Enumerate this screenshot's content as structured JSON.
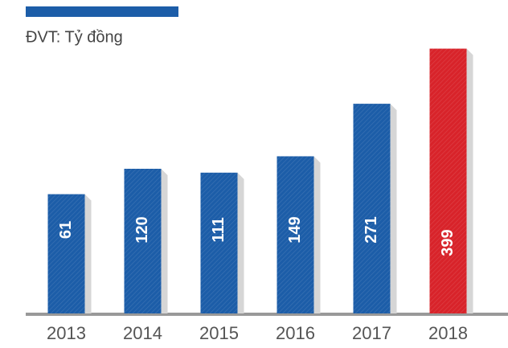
{
  "chart_data": {
    "type": "bar",
    "subtitle": "ĐVT: Tỷ đồng",
    "categories": [
      "2013",
      "2014",
      "2015",
      "2016",
      "2017",
      "2018"
    ],
    "values": [
      61,
      120,
      111,
      149,
      271,
      399
    ],
    "colors": [
      "#1c5da8",
      "#1c5da8",
      "#1c5da8",
      "#1c5da8",
      "#1c5da8",
      "#d8232a"
    ],
    "ylim": [
      -216,
      400
    ]
  }
}
